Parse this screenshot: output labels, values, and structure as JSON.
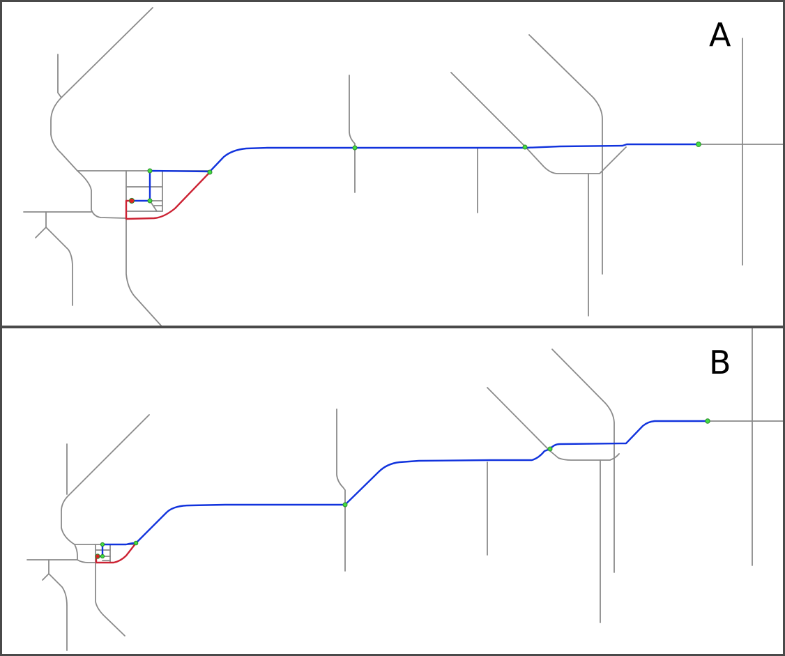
{
  "panels": [
    {
      "label": "A"
    },
    {
      "label": "B"
    }
  ],
  "colors": {
    "road": "#8a8a8a",
    "route_primary": "#1133dd",
    "route_alternate": "#cc2233",
    "waypoint": "#44dd44",
    "origin": "#dd2222",
    "border": "#4a4a4a"
  }
}
